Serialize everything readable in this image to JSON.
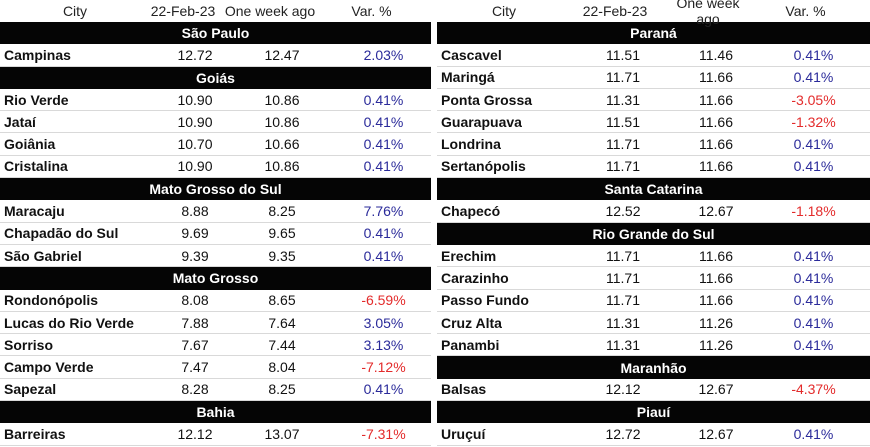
{
  "headers": {
    "city": "City",
    "current": "22-Feb-23",
    "previous": "One week ago",
    "variation": "Var. %"
  },
  "left_regions": [
    {
      "name": "São Paulo",
      "rows": [
        {
          "city": "Campinas",
          "current": "12.72",
          "previous": "12.47",
          "variation": "2.03%",
          "trend": "pos"
        }
      ]
    },
    {
      "name": "Goiás",
      "rows": [
        {
          "city": "Rio Verde",
          "current": "10.90",
          "previous": "10.86",
          "variation": "0.41%",
          "trend": "pos"
        },
        {
          "city": "Jataí",
          "current": "10.90",
          "previous": "10.86",
          "variation": "0.41%",
          "trend": "pos"
        },
        {
          "city": "Goiânia",
          "current": "10.70",
          "previous": "10.66",
          "variation": "0.41%",
          "trend": "pos"
        },
        {
          "city": "Cristalina",
          "current": "10.90",
          "previous": "10.86",
          "variation": "0.41%",
          "trend": "pos"
        }
      ]
    },
    {
      "name": "Mato Grosso do Sul",
      "rows": [
        {
          "city": "Maracaju",
          "current": "8.88",
          "previous": "8.25",
          "variation": "7.76%",
          "trend": "pos"
        },
        {
          "city": "Chapadão do Sul",
          "current": "9.69",
          "previous": "9.65",
          "variation": "0.41%",
          "trend": "pos"
        },
        {
          "city": "São Gabriel",
          "current": "9.39",
          "previous": "9.35",
          "variation": "0.41%",
          "trend": "pos"
        }
      ]
    },
    {
      "name": "Mato Grosso",
      "rows": [
        {
          "city": "Rondonópolis",
          "current": "8.08",
          "previous": "8.65",
          "variation": "-6.59%",
          "trend": "neg"
        },
        {
          "city": "Lucas do Rio Verde",
          "current": "7.88",
          "previous": "7.64",
          "variation": "3.05%",
          "trend": "pos"
        },
        {
          "city": "Sorriso",
          "current": "7.67",
          "previous": "7.44",
          "variation": "3.13%",
          "trend": "pos"
        },
        {
          "city": "Campo Verde",
          "current": "7.47",
          "previous": "8.04",
          "variation": "-7.12%",
          "trend": "neg"
        },
        {
          "city": "Sapezal",
          "current": "8.28",
          "previous": "8.25",
          "variation": "0.41%",
          "trend": "pos"
        }
      ]
    },
    {
      "name": "Bahia",
      "rows": [
        {
          "city": "Barreiras",
          "current": "12.12",
          "previous": "13.07",
          "variation": "-7.31%",
          "trend": "neg"
        }
      ]
    }
  ],
  "right_regions": [
    {
      "name": "Paraná",
      "rows": [
        {
          "city": "Cascavel",
          "current": "11.51",
          "previous": "11.46",
          "variation": "0.41%",
          "trend": "pos"
        },
        {
          "city": "Maringá",
          "current": "11.71",
          "previous": "11.66",
          "variation": "0.41%",
          "trend": "pos"
        },
        {
          "city": "Ponta Grossa",
          "current": "11.31",
          "previous": "11.66",
          "variation": "-3.05%",
          "trend": "neg"
        },
        {
          "city": "Guarapuava",
          "current": "11.51",
          "previous": "11.66",
          "variation": "-1.32%",
          "trend": "neg"
        },
        {
          "city": "Londrina",
          "current": "11.71",
          "previous": "11.66",
          "variation": "0.41%",
          "trend": "pos"
        },
        {
          "city": "Sertanópolis",
          "current": "11.71",
          "previous": "11.66",
          "variation": "0.41%",
          "trend": "pos"
        }
      ]
    },
    {
      "name": "Santa Catarina",
      "rows": [
        {
          "city": "Chapecó",
          "current": "12.52",
          "previous": "12.67",
          "variation": "-1.18%",
          "trend": "neg"
        }
      ]
    },
    {
      "name": "Rio Grande do Sul",
      "rows": [
        {
          "city": "Erechim",
          "current": "11.71",
          "previous": "11.66",
          "variation": "0.41%",
          "trend": "pos"
        },
        {
          "city": "Carazinho",
          "current": "11.71",
          "previous": "11.66",
          "variation": "0.41%",
          "trend": "pos"
        },
        {
          "city": "Passo Fundo",
          "current": "11.71",
          "previous": "11.66",
          "variation": "0.41%",
          "trend": "pos"
        },
        {
          "city": "Cruz Alta",
          "current": "11.31",
          "previous": "11.26",
          "variation": "0.41%",
          "trend": "pos"
        },
        {
          "city": "Panambi",
          "current": "11.31",
          "previous": "11.26",
          "variation": "0.41%",
          "trend": "pos"
        }
      ]
    },
    {
      "name": "Maranhão",
      "rows": [
        {
          "city": "Balsas",
          "current": "12.12",
          "previous": "12.67",
          "variation": "-4.37%",
          "trend": "neg"
        }
      ]
    },
    {
      "name": "Piauí",
      "rows": [
        {
          "city": "Uruçuí",
          "current": "12.72",
          "previous": "12.67",
          "variation": "0.41%",
          "trend": "pos"
        }
      ]
    }
  ],
  "colors": {
    "positive": "#2a2a9a",
    "negative": "#e32b2b",
    "region_bg": "#050505",
    "region_text": "#ffffff"
  }
}
